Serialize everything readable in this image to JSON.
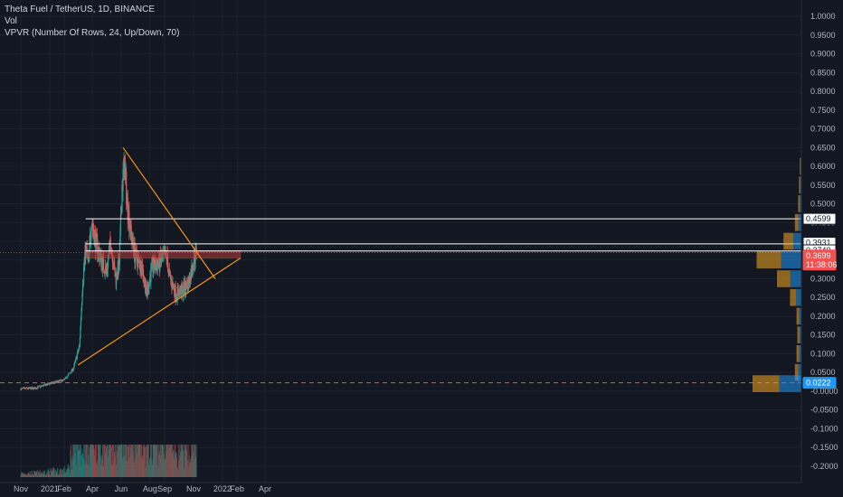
{
  "header": {
    "title": "Theta Fuel / TetherUS, 1D, BINANCE",
    "vol": "Vol",
    "vpvr": "VPVR (Number Of Rows, 24, Up/Down, 70)"
  },
  "colors": {
    "background": "#131722",
    "up": "#26a69a",
    "down": "#ef5350",
    "trendline": "#f7931a",
    "level_line": "#ffffff",
    "zone": "#b23a3a"
  },
  "chart_data": {
    "type": "candlestick",
    "ylim": [
      -0.2125,
      1.0125
    ],
    "y_ticks": [
      "1.0000",
      "0.9500",
      "0.9000",
      "0.8500",
      "0.8000",
      "0.7500",
      "0.7000",
      "0.6500",
      "0.6000",
      "0.5500",
      "0.5000",
      "0.4500",
      "0.4000",
      "0.3500",
      "0.3000",
      "0.2500",
      "0.2000",
      "0.1500",
      "0.1000",
      "0.0500",
      "-0.0000",
      "-0.0500",
      "-0.1000",
      "-0.1500",
      "-0.2000"
    ],
    "x_ticks": [
      {
        "label": "Nov",
        "date": "2020-11-01"
      },
      {
        "label": "2021",
        "date": "2021-01-01"
      },
      {
        "label": "Feb",
        "date": "2021-02-01"
      },
      {
        "label": "Apr",
        "date": "2021-04-01"
      },
      {
        "label": "Jun",
        "date": "2021-06-01"
      },
      {
        "label": "Aug",
        "date": "2021-08-01"
      },
      {
        "label": "Sep",
        "date": "2021-09-01"
      },
      {
        "label": "Nov",
        "date": "2021-11-01"
      },
      {
        "label": "2022",
        "date": "2022-01-01"
      },
      {
        "label": "Feb",
        "date": "2022-02-01"
      },
      {
        "label": "Apr",
        "date": "2022-04-01"
      }
    ],
    "price_path": [
      {
        "date": "2020-11-01",
        "price": 0.006
      },
      {
        "date": "2020-12-01",
        "price": 0.008
      },
      {
        "date": "2021-01-01",
        "price": 0.02
      },
      {
        "date": "2021-02-01",
        "price": 0.03
      },
      {
        "date": "2021-02-20",
        "price": 0.06
      },
      {
        "date": "2021-03-05",
        "price": 0.12
      },
      {
        "date": "2021-03-12",
        "price": 0.3
      },
      {
        "date": "2021-03-18",
        "price": 0.38
      },
      {
        "date": "2021-03-24",
        "price": 0.34
      },
      {
        "date": "2021-03-30",
        "price": 0.46
      },
      {
        "date": "2021-04-08",
        "price": 0.4
      },
      {
        "date": "2021-04-20",
        "price": 0.35
      },
      {
        "date": "2021-05-01",
        "price": 0.32
      },
      {
        "date": "2021-05-10",
        "price": 0.4
      },
      {
        "date": "2021-05-20",
        "price": 0.3
      },
      {
        "date": "2021-05-28",
        "price": 0.34
      },
      {
        "date": "2021-06-03",
        "price": 0.55
      },
      {
        "date": "2021-06-08",
        "price": 0.6
      },
      {
        "date": "2021-06-14",
        "price": 0.5
      },
      {
        "date": "2021-06-22",
        "price": 0.42
      },
      {
        "date": "2021-07-01",
        "price": 0.36
      },
      {
        "date": "2021-07-15",
        "price": 0.33
      },
      {
        "date": "2021-07-25",
        "price": 0.26
      },
      {
        "date": "2021-08-05",
        "price": 0.33
      },
      {
        "date": "2021-08-20",
        "price": 0.34
      },
      {
        "date": "2021-08-28",
        "price": 0.35
      },
      {
        "date": "2021-09-05",
        "price": 0.36
      },
      {
        "date": "2021-09-12",
        "price": 0.3
      },
      {
        "date": "2021-09-25",
        "price": 0.26
      },
      {
        "date": "2021-10-10",
        "price": 0.27
      },
      {
        "date": "2021-10-22",
        "price": 0.29
      },
      {
        "date": "2021-11-01",
        "price": 0.35
      },
      {
        "date": "2021-11-07",
        "price": 0.37
      }
    ],
    "horizontal_levels": [
      {
        "value": 0.4599,
        "label": "0.4599"
      },
      {
        "value": 0.3931,
        "label": "0.3931"
      },
      {
        "value": 0.374,
        "label": "0.3740"
      }
    ],
    "resistance_zone": {
      "from": 0.355,
      "to": 0.375,
      "start": "2021-03-18",
      "end": "2022-02-08"
    },
    "trendlines": [
      {
        "from": {
          "date": "2021-06-05",
          "price": 0.65
        },
        "to": {
          "date": "2021-12-17",
          "price": 0.3
        }
      },
      {
        "from": {
          "date": "2021-03-02",
          "price": 0.07
        },
        "to": {
          "date": "2022-02-08",
          "price": 0.355
        }
      }
    ],
    "current_price": {
      "value": 0.3699,
      "label": "0.3699",
      "countdown": "11:38:06"
    },
    "dashed_level": {
      "value": 0.0222,
      "label": "0.0222"
    },
    "vpvr_profile": [
      {
        "price": 0.6,
        "vol": 2
      },
      {
        "price": 0.55,
        "vol": 3
      },
      {
        "price": 0.5,
        "vol": 4
      },
      {
        "price": 0.45,
        "vol": 8
      },
      {
        "price": 0.4,
        "vol": 22
      },
      {
        "price": 0.35,
        "vol": 55
      },
      {
        "price": 0.3,
        "vol": 30
      },
      {
        "price": 0.25,
        "vol": 14
      },
      {
        "price": 0.2,
        "vol": 6
      },
      {
        "price": 0.15,
        "vol": 5
      },
      {
        "price": 0.1,
        "vol": 6
      },
      {
        "price": 0.05,
        "vol": 8
      },
      {
        "price": 0.02,
        "vol": 60
      }
    ]
  }
}
